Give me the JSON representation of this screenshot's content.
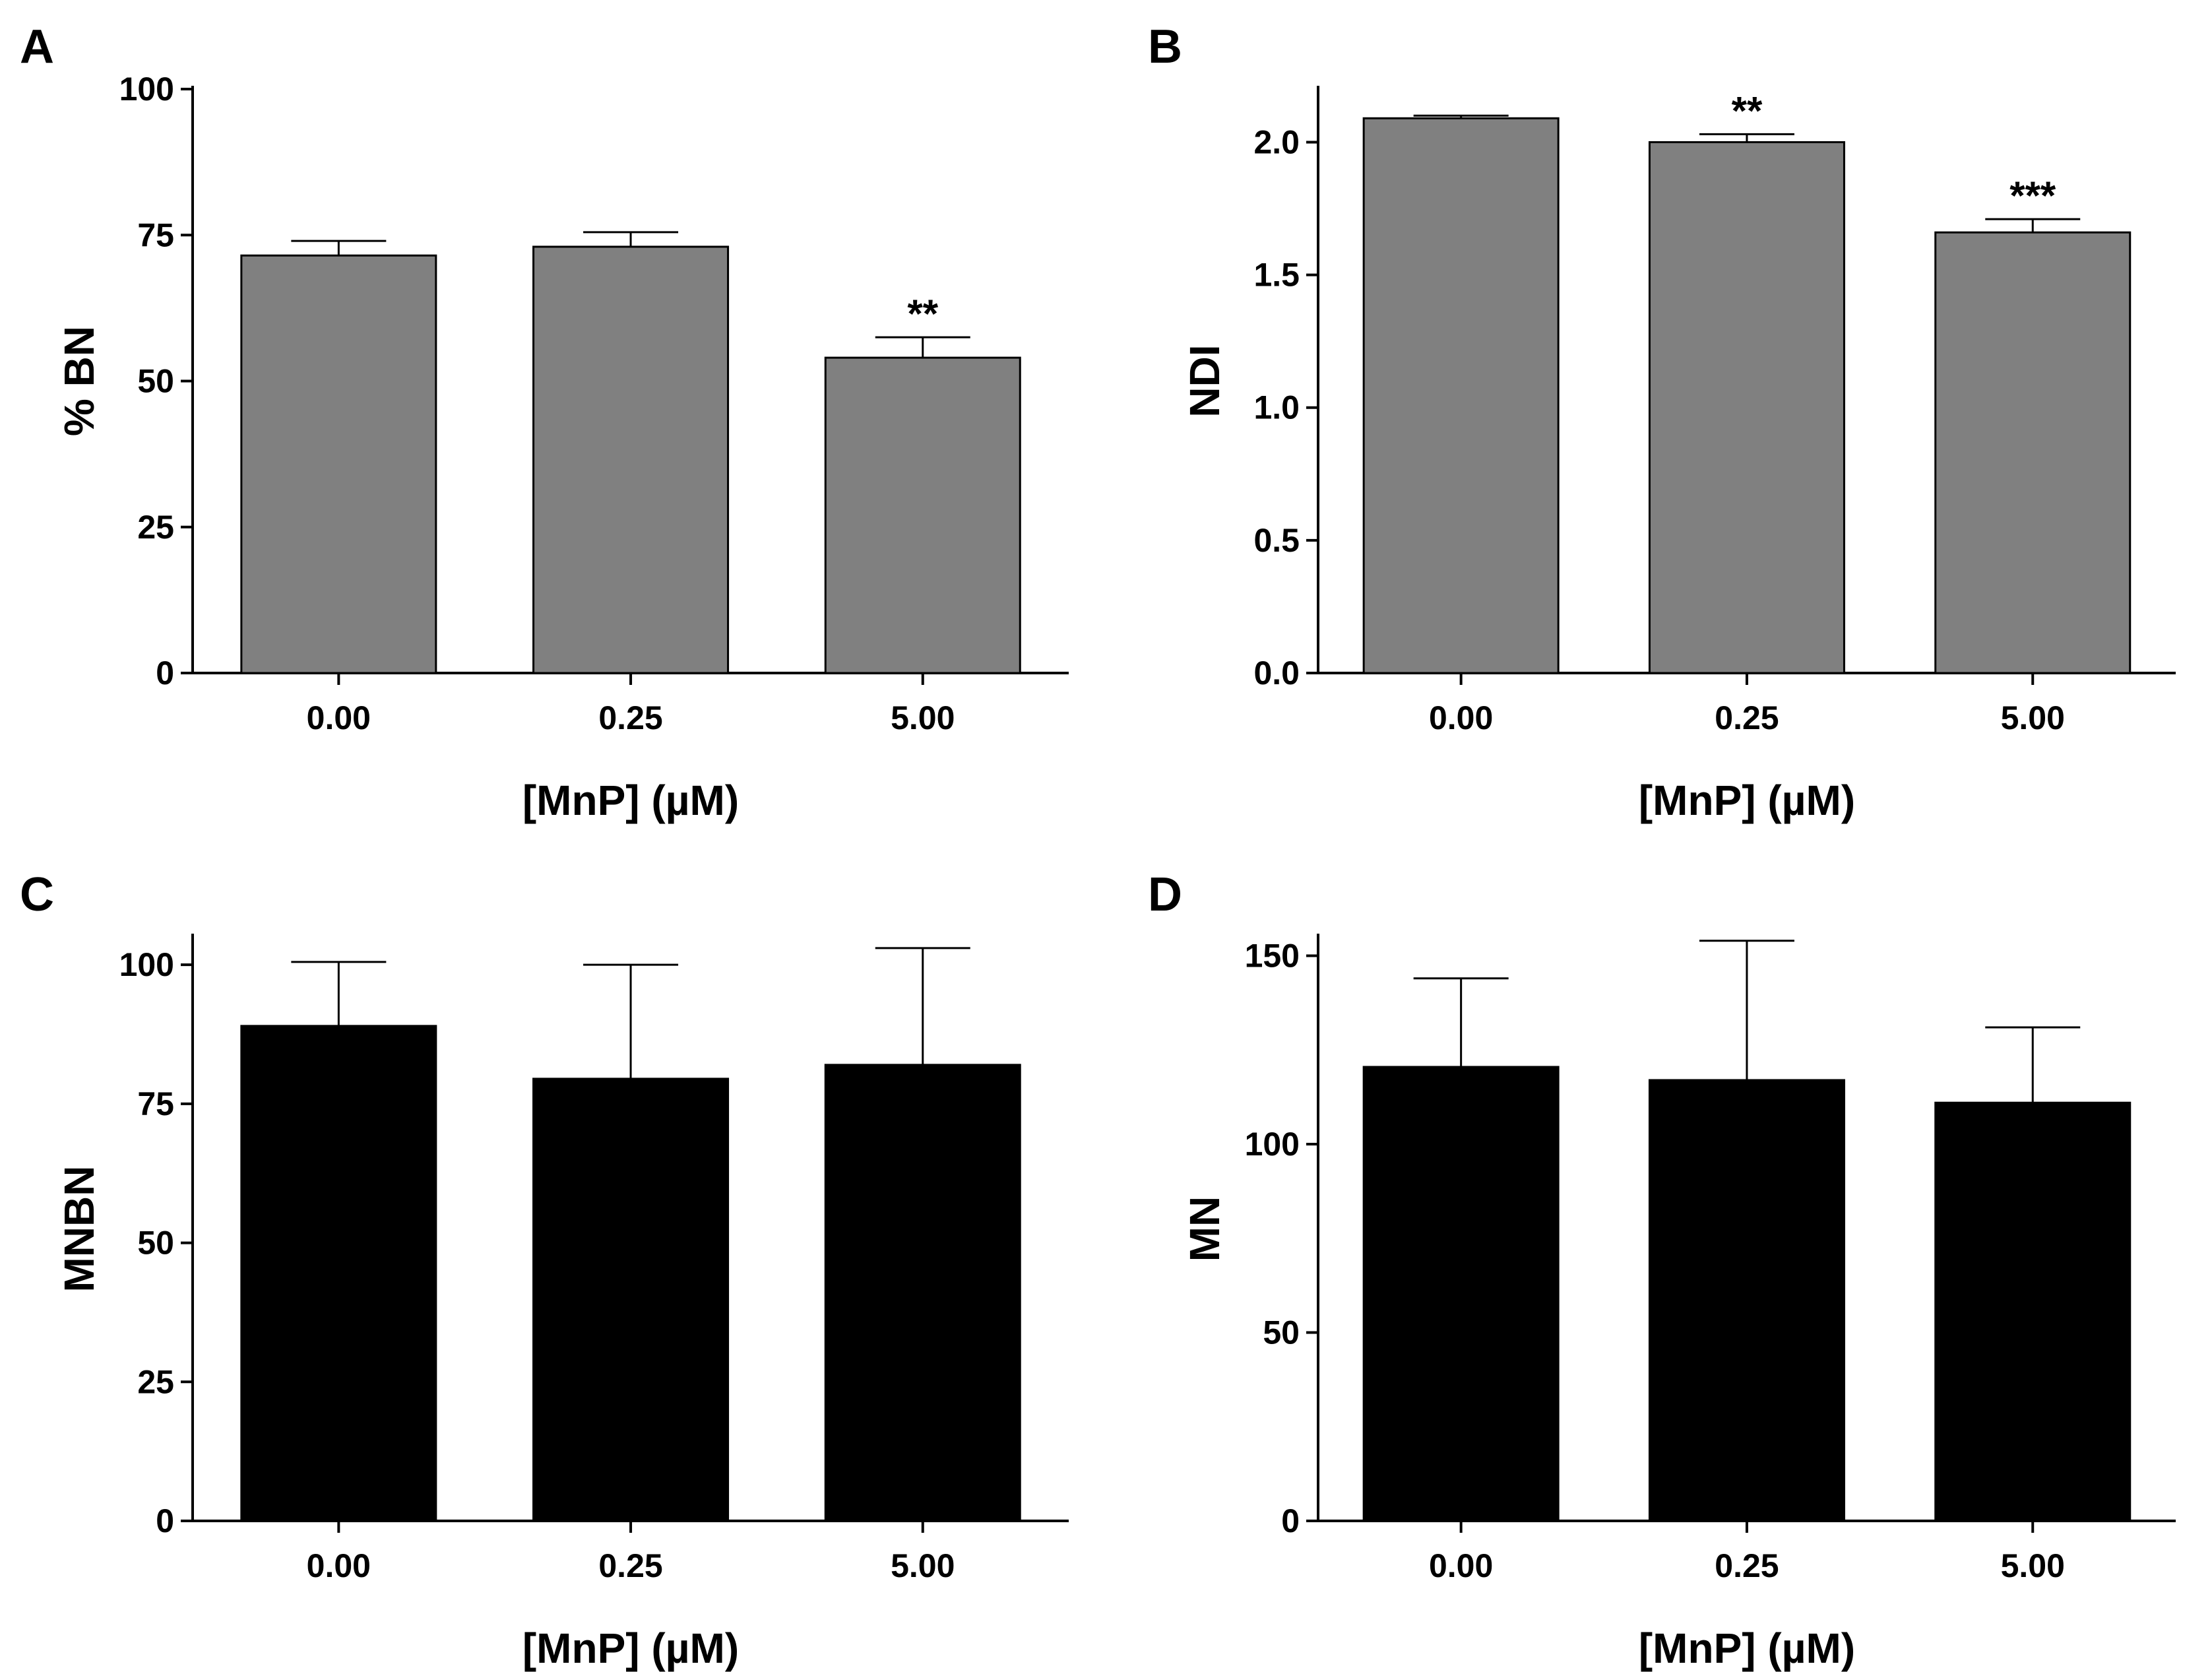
{
  "figure_title": "",
  "chart_data": [
    {
      "panel": "A",
      "type": "bar",
      "title": "",
      "xlabel": "[MnP] (µM)",
      "ylabel": "% BN",
      "categories": [
        "0.00",
        "0.25",
        "5.00"
      ],
      "values": [
        71.5,
        73,
        54
      ],
      "errors": [
        2.5,
        2.5,
        3.5
      ],
      "significance": [
        "",
        "",
        "**"
      ],
      "ylim": [
        0,
        100
      ],
      "yticks": [
        0,
        25,
        50,
        75,
        100
      ],
      "ytick_labels": [
        "0",
        "25",
        "50",
        "75",
        "100"
      ],
      "bar_color": "#808080",
      "grid": false
    },
    {
      "panel": "B",
      "type": "bar",
      "title": "",
      "xlabel": "[MnP] (µM)",
      "ylabel": "NDI",
      "categories": [
        "0.00",
        "0.25",
        "5.00"
      ],
      "values": [
        2.09,
        2.0,
        1.66
      ],
      "errors": [
        0.01,
        0.03,
        0.05
      ],
      "significance": [
        "",
        "**",
        "***"
      ],
      "ylim": [
        0,
        2.2
      ],
      "yticks": [
        0,
        0.5,
        1.0,
        1.5,
        2.0
      ],
      "ytick_labels": [
        "0.0",
        "0.5",
        "1.0",
        "1.5",
        "2.0"
      ],
      "bar_color": "#808080",
      "grid": false
    },
    {
      "panel": "C",
      "type": "bar",
      "title": "",
      "xlabel": "[MnP] (µM)",
      "ylabel": "MNBN",
      "categories": [
        "0.00",
        "0.25",
        "5.00"
      ],
      "values": [
        89,
        79.5,
        82
      ],
      "errors": [
        11.5,
        20.5,
        21
      ],
      "significance": [
        "",
        "",
        ""
      ],
      "ylim": [
        0,
        105
      ],
      "yticks": [
        0,
        25,
        50,
        75,
        100
      ],
      "ytick_labels": [
        "0",
        "25",
        "50",
        "75",
        "100"
      ],
      "bar_color": "#000000",
      "grid": false
    },
    {
      "panel": "D",
      "type": "bar",
      "title": "",
      "xlabel": "[MnP] (µM)",
      "ylabel": "MN",
      "categories": [
        "0.00",
        "0.25",
        "5.00"
      ],
      "values": [
        120.5,
        117,
        111
      ],
      "errors": [
        23.5,
        37,
        20
      ],
      "significance": [
        "",
        "",
        ""
      ],
      "ylim": [
        0,
        155
      ],
      "yticks": [
        0,
        50,
        100,
        150
      ],
      "ytick_labels": [
        "0",
        "50",
        "100",
        "150"
      ],
      "bar_color": "#000000",
      "grid": false
    }
  ]
}
